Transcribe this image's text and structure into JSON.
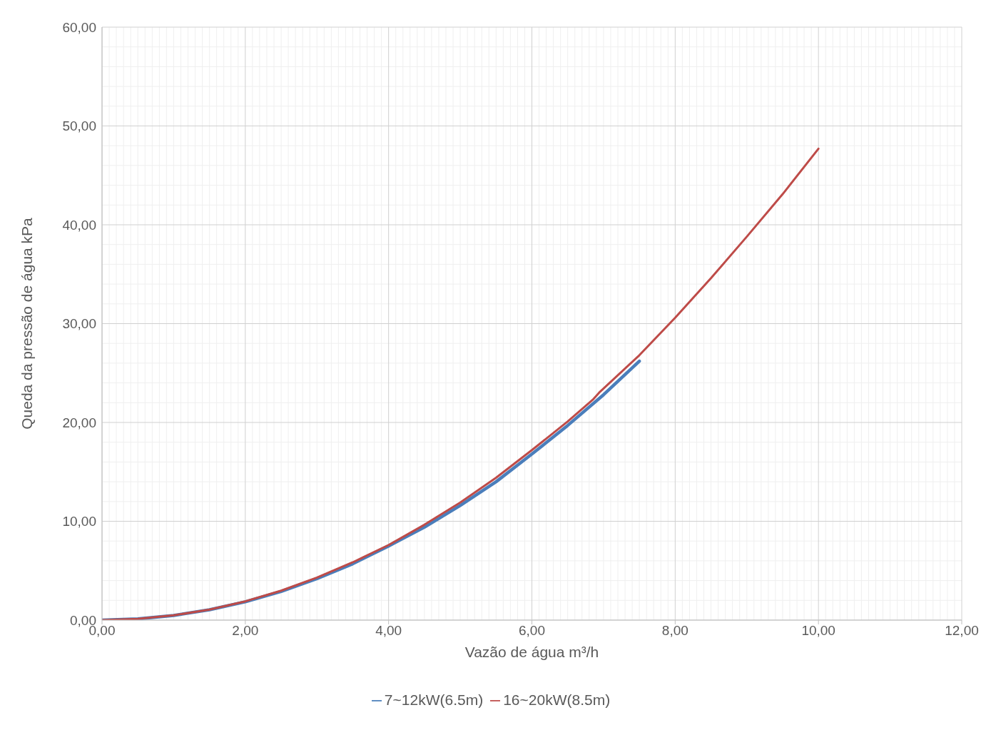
{
  "chart_data": {
    "type": "line",
    "xlabel": "Vazão de água m³/h",
    "ylabel": "Queda da pressão de água  kPa",
    "xlim": [
      0,
      12
    ],
    "ylim": [
      0,
      60
    ],
    "xticks": [
      {
        "value": 0,
        "label": "0,00"
      },
      {
        "value": 2,
        "label": "2,00"
      },
      {
        "value": 4,
        "label": "4,00"
      },
      {
        "value": 6,
        "label": "6,00"
      },
      {
        "value": 8,
        "label": "8,00"
      },
      {
        "value": 10,
        "label": "10,00"
      },
      {
        "value": 12,
        "label": "12,00"
      }
    ],
    "yticks": [
      {
        "value": 0,
        "label": "0,00"
      },
      {
        "value": 10,
        "label": "10,00"
      },
      {
        "value": 20,
        "label": "20,00"
      },
      {
        "value": 30,
        "label": "30,00"
      },
      {
        "value": 40,
        "label": "40,00"
      },
      {
        "value": 50,
        "label": "50,00"
      },
      {
        "value": 60,
        "label": "60,00"
      }
    ],
    "grid": true,
    "legend": "bottom",
    "marker": "none",
    "line_style": "solid",
    "series": [
      {
        "name": "7~12kW(6.5m)",
        "color": "#4a7ebb",
        "x": [
          0,
          0.5,
          1,
          1.5,
          2,
          2.5,
          3,
          3.5,
          4,
          4.5,
          5,
          5.5,
          6,
          6.5,
          7,
          7.5
        ],
        "values": [
          0,
          0.12,
          0.47,
          1.05,
          1.85,
          2.9,
          4.2,
          5.7,
          7.5,
          9.4,
          11.6,
          14.0,
          16.8,
          19.7,
          22.8,
          26.2
        ]
      },
      {
        "name": "16~20kW(8.5m)",
        "color": "#be4b48",
        "x": [
          0,
          0.5,
          1,
          1.5,
          2,
          2.5,
          3,
          3.5,
          4,
          4.5,
          5,
          5.5,
          6,
          6.5,
          6.85,
          6.95,
          7.5,
          8,
          8.5,
          9,
          9.5,
          10
        ],
        "values": [
          0,
          0.12,
          0.48,
          1.07,
          1.9,
          2.98,
          4.3,
          5.85,
          7.6,
          9.65,
          11.9,
          14.4,
          17.2,
          20.1,
          22.3,
          23.1,
          26.8,
          30.6,
          34.6,
          38.8,
          43.1,
          47.7
        ]
      }
    ]
  }
}
